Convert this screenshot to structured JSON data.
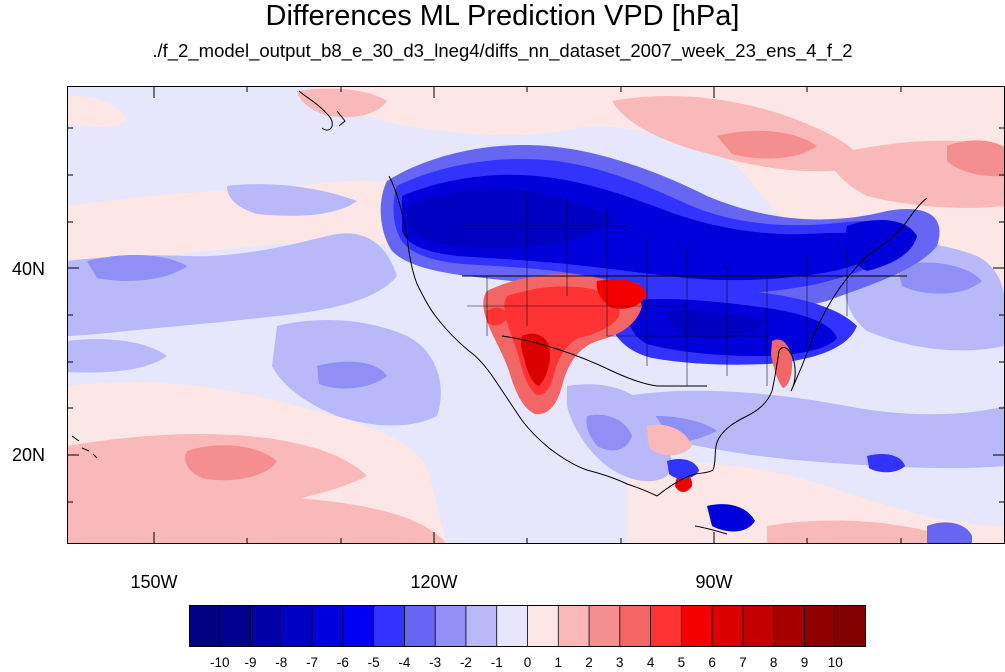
{
  "header": {
    "title": "Differences ML Prediction VPD [hPa]",
    "subtitle": "./f_2_model_output_b8_e_30_d3_lneg4/diffs_nn_dataset_2007_week_23_ens_4_f_2"
  },
  "map": {
    "lat_labels": [
      "40N",
      "20N"
    ],
    "lon_labels": [
      "150W",
      "120W",
      "90W"
    ]
  },
  "colorbar": {
    "labels": [
      "-10",
      "-9",
      "-8",
      "-7",
      "-6",
      "-5",
      "-4",
      "-3",
      "-2",
      "-1",
      "0",
      "1",
      "2",
      "3",
      "4",
      "5",
      "6",
      "7",
      "8",
      "9",
      "10"
    ],
    "colors": [
      "#000080",
      "#00008f",
      "#0000a6",
      "#0000c2",
      "#0000db",
      "#0000f5",
      "#3333ff",
      "#6666f2",
      "#8f8ff5",
      "#b9b9fa",
      "#e6e6fc",
      "#fce6e6",
      "#fab9b9",
      "#f58f8f",
      "#f26666",
      "#ff3333",
      "#f50000",
      "#db0000",
      "#c20000",
      "#a60000",
      "#8f0000",
      "#800000"
    ]
  },
  "colors": {
    "ocean_base": "#e6e6fc",
    "strong_negative": "#0000db",
    "strong_positive": "#db0000"
  }
}
